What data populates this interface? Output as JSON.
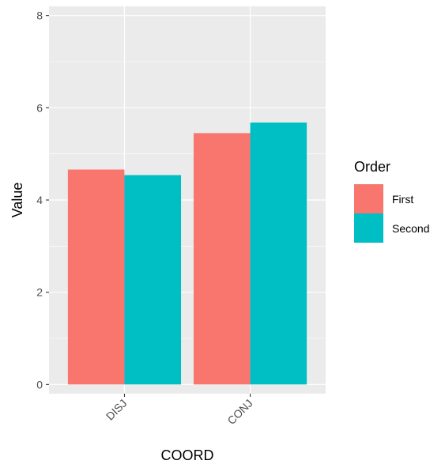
{
  "chart_data": {
    "type": "bar",
    "categories": [
      "DISJ",
      "CONJ"
    ],
    "series": [
      {
        "name": "First",
        "values": [
          4.66,
          5.45
        ],
        "color": "#F8766D"
      },
      {
        "name": "Second",
        "values": [
          4.54,
          5.68
        ],
        "color": "#00BFC4"
      }
    ],
    "xlabel": "COORD",
    "ylabel": "Value",
    "ylim": [
      -0.2,
      8.2
    ],
    "yticks": [
      0,
      2,
      4,
      6,
      8
    ],
    "ytick_labels": [
      "0",
      "2",
      "4",
      "6",
      "8"
    ],
    "grid": true,
    "legend": {
      "title": "Order",
      "position": "right",
      "entries": [
        "First",
        "Second"
      ]
    },
    "colors": {
      "panel_background": "#EBEBEB",
      "gridline": "#FFFFFF",
      "axis_text": "#4D4D4D",
      "axis_title": "#000000"
    }
  }
}
